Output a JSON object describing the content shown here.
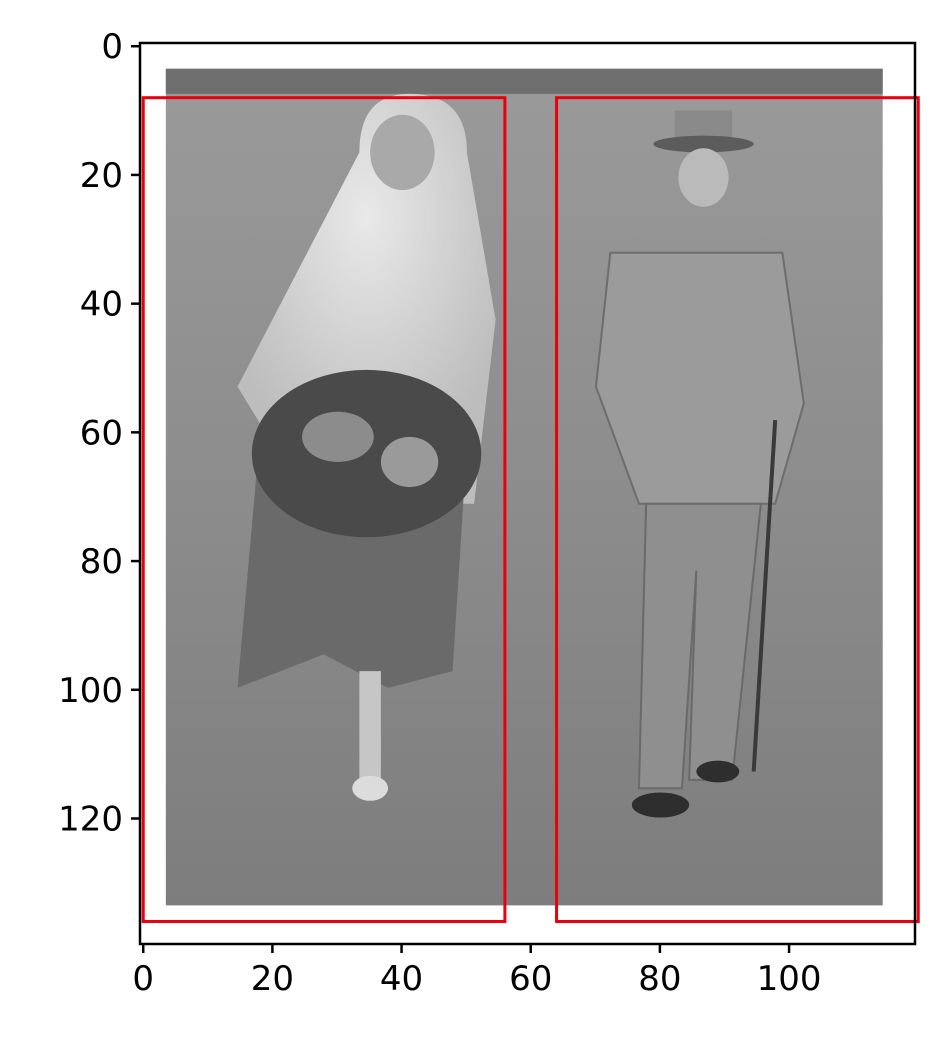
{
  "chart_data": {
    "type": "image",
    "title": "",
    "xlabel": "",
    "ylabel": "",
    "xlim": [
      -0.5,
      119.5
    ],
    "ylim": [
      139.5,
      -0.5
    ],
    "y_inverted": true,
    "x_ticks": [
      0,
      20,
      40,
      60,
      80,
      100
    ],
    "x_tick_labels": [
      "0",
      "20",
      "40",
      "60",
      "80",
      "100"
    ],
    "y_ticks": [
      0,
      20,
      40,
      60,
      80,
      100,
      120
    ],
    "y_tick_labels": [
      "0",
      "20",
      "40",
      "60",
      "80",
      "100",
      "120"
    ],
    "grid": false,
    "image_content": "grayscale photograph of a bride with veil and bouquet walking beside an elderly man in hat and suit with a cane on grass",
    "image_extent": {
      "x": [
        3.5,
        114.5
      ],
      "y": [
        3.5,
        133.5
      ]
    },
    "annotation_color": "#e8000b",
    "boxes": [
      {
        "x0": 0,
        "y0": 8,
        "x1": 56,
        "y1": 136
      },
      {
        "x0": 64,
        "y0": 8,
        "x1": 120,
        "y1": 136
      }
    ]
  }
}
